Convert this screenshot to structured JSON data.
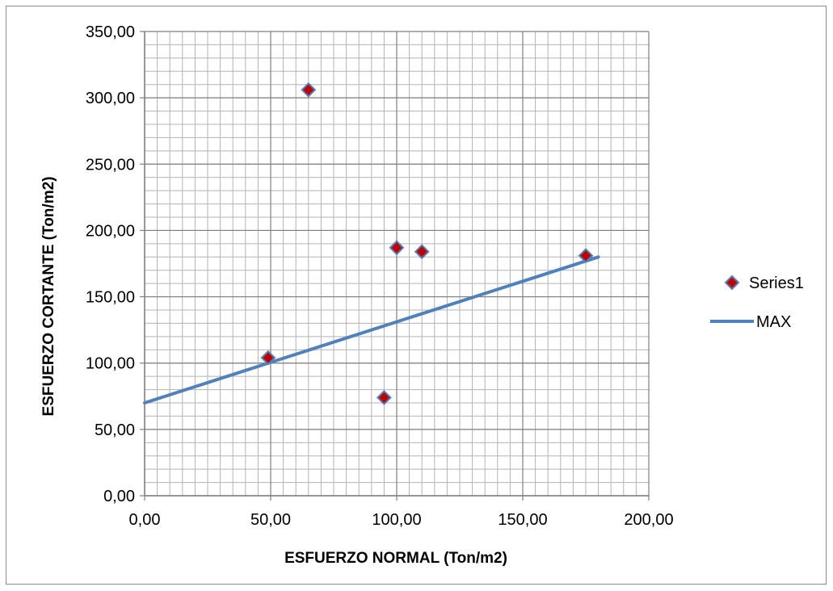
{
  "chart_data": {
    "type": "scatter",
    "title": "",
    "xlabel": "ESFUERZO NORMAL (Ton/m2)",
    "ylabel": "ESFUERZO CORTANTE (Ton/m2)",
    "xlim": [
      0,
      200
    ],
    "ylim": [
      0,
      350
    ],
    "x_ticks": [
      0,
      50,
      100,
      150,
      200
    ],
    "y_ticks": [
      0,
      50,
      100,
      150,
      200,
      250,
      300,
      350
    ],
    "x_tick_labels": [
      "0,00",
      "50,00",
      "100,00",
      "150,00",
      "200,00"
    ],
    "y_tick_labels": [
      "0,00",
      "50,00",
      "100,00",
      "150,00",
      "200,00",
      "250,00",
      "300,00",
      "350,00"
    ],
    "x_minor_step": 5,
    "y_minor_step": 10,
    "grid": true,
    "legend_position": "right",
    "series": [
      {
        "name": "Series1",
        "kind": "scatter",
        "marker": "diamond",
        "color": "#c00000",
        "edge_color": "#4f81bd",
        "x": [
          49,
          65,
          95,
          100,
          110,
          175
        ],
        "y": [
          104,
          306,
          74,
          187,
          184,
          181
        ]
      },
      {
        "name": "MAX",
        "kind": "line",
        "color": "#4f81bd",
        "x": [
          0,
          180
        ],
        "y": [
          70,
          180
        ]
      }
    ]
  }
}
